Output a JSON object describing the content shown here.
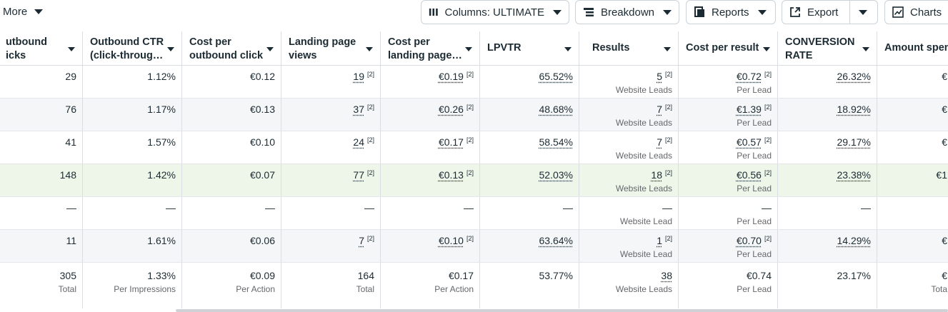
{
  "toolbar": {
    "more_label": "More",
    "columns_label": "Columns: ULTIMATE",
    "breakdown_label": "Breakdown",
    "reports_label": "Reports",
    "export_label": "Export",
    "charts_label": "Charts"
  },
  "headers": [
    "utbound\nicks",
    "Outbound CTR\n(click-throug…",
    "Cost per\noutbound click",
    "Landing page\nviews",
    "Cost per\nlanding page…",
    "LPVTR",
    "Results",
    "Cost per result",
    "CONVERSION\nRATE",
    "Amount spen"
  ],
  "rows": [
    {
      "clicks": "29",
      "ctr": "1.12%",
      "cpc": "€0.12",
      "lpv": "19",
      "cplpv": "€0.19",
      "lpvtr": "65.52%",
      "results": "5",
      "results_sub": "Website Leads",
      "cpr": "€0.72",
      "cpr_sub": "Per Lead",
      "conv": "26.32%",
      "amount": "€"
    },
    {
      "clicks": "76",
      "ctr": "1.17%",
      "cpc": "€0.13",
      "lpv": "37",
      "cplpv": "€0.26",
      "lpvtr": "48.68%",
      "results": "7",
      "results_sub": "Website Leads",
      "cpr": "€1.39",
      "cpr_sub": "Per Lead",
      "conv": "18.92%",
      "amount": "€"
    },
    {
      "clicks": "41",
      "ctr": "1.57%",
      "cpc": "€0.10",
      "lpv": "24",
      "cplpv": "€0.17",
      "lpvtr": "58.54%",
      "results": "7",
      "results_sub": "Website Leads",
      "cpr": "€0.57",
      "cpr_sub": "Per Lead",
      "conv": "29.17%",
      "amount": "€"
    },
    {
      "clicks": "148",
      "ctr": "1.42%",
      "cpc": "€0.07",
      "lpv": "77",
      "cplpv": "€0.13",
      "lpvtr": "52.03%",
      "results": "18",
      "results_sub": "Website Leads",
      "cpr": "€0.56",
      "cpr_sub": "Per Lead",
      "conv": "23.38%",
      "amount": "€1"
    },
    {
      "clicks": "—",
      "ctr": "—",
      "cpc": "—",
      "lpv": "—",
      "cplpv": "—",
      "lpvtr": "—",
      "results": "—",
      "results_sub": "Website Lead",
      "cpr": "—",
      "cpr_sub": "Per Lead",
      "conv": "—",
      "amount": ""
    },
    {
      "clicks": "11",
      "ctr": "1.61%",
      "cpc": "€0.06",
      "lpv": "7",
      "cplpv": "€0.10",
      "lpvtr": "63.64%",
      "results": "1",
      "results_sub": "Website Lead",
      "cpr": "€0.70",
      "cpr_sub": "Per Lead",
      "conv": "14.29%",
      "amount": "€"
    }
  ],
  "superscript": "[2]",
  "totals": {
    "clicks": "305",
    "clicks_sub": "Total",
    "ctr": "1.33%",
    "ctr_sub": "Per Impressions",
    "cpc": "€0.09",
    "cpc_sub": "Per Action",
    "lpv": "164",
    "lpv_sub": "Total",
    "cplpv": "€0.17",
    "cplpv_sub": "Per Action",
    "lpvtr": "53.77%",
    "results": "38",
    "results_sub": "Website Leads",
    "cpr": "€0.74",
    "cpr_sub": "Per Lead",
    "conv": "23.17%",
    "amount": "€",
    "amount_sub": "Tota"
  }
}
